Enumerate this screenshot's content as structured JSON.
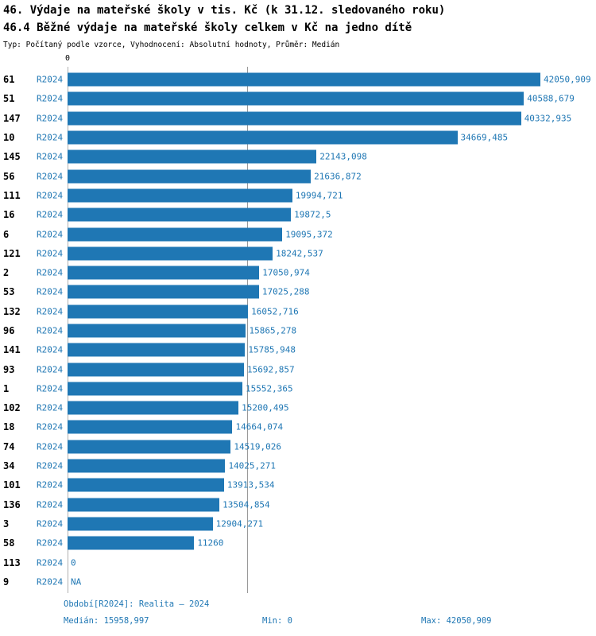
{
  "header": {
    "title": "46. Výdaje na mateřské školy v tis. Kč (k 31.12. sledovaného roku)",
    "subtitle": "46.4 Běžné výdaje na mateřské školy celkem v Kč na jedno dítě",
    "meta": "Typ: Počítaný podle vzorce, Vyhodnocení: Absolutní hodnoty, Průměr: Medián"
  },
  "colors": {
    "bar": "#1f77b4",
    "accent_text": "#1f77b4",
    "median_line": "#999999",
    "zero_line": "#b0b0b0"
  },
  "chart_data": {
    "type": "bar",
    "orientation": "horizontal",
    "title": "46.4 Běžné výdaje na mateřské školy celkem v Kč na jedno dítě",
    "xlabel": "",
    "ylabel": "",
    "zero_tick": "0",
    "series_label": "R2024",
    "categories": [
      "61",
      "51",
      "147",
      "10",
      "145",
      "56",
      "111",
      "16",
      "6",
      "121",
      "2",
      "53",
      "132",
      "96",
      "141",
      "93",
      "1",
      "102",
      "18",
      "74",
      "34",
      "101",
      "136",
      "3",
      "58",
      "113",
      "9"
    ],
    "values": [
      42050.909,
      40588.679,
      40332.935,
      34669.485,
      22143.098,
      21636.872,
      19994.721,
      19872.5,
      19095.372,
      18242.537,
      17050.974,
      17025.288,
      16052.716,
      15865.278,
      15785.948,
      15692.857,
      15552.365,
      15200.495,
      14664.074,
      14519.026,
      14025.271,
      13913.534,
      13504.854,
      12904.271,
      11260,
      0,
      null
    ],
    "value_labels": [
      "42050,909",
      "40588,679",
      "40332,935",
      "34669,485",
      "22143,098",
      "21636,872",
      "19994,721",
      "19872,5",
      "19095,372",
      "18242,537",
      "17050,974",
      "17025,288",
      "16052,716",
      "15865,278",
      "15785,948",
      "15692,857",
      "15552,365",
      "15200,495",
      "14664,074",
      "14519,026",
      "14025,271",
      "13913,534",
      "13504,854",
      "12904,271",
      "11260",
      "0",
      "NA"
    ],
    "xlim": [
      0,
      42050.909
    ],
    "median": 15958.997,
    "median_label": "15958,997",
    "gridlines": [
      "zero",
      "median"
    ],
    "legend": "none"
  },
  "footer": {
    "period": "Období[R2024]: Realita – 2024",
    "median": "Medián: 15958,997",
    "min": "Min: 0",
    "max": "Max: 42050,909"
  }
}
